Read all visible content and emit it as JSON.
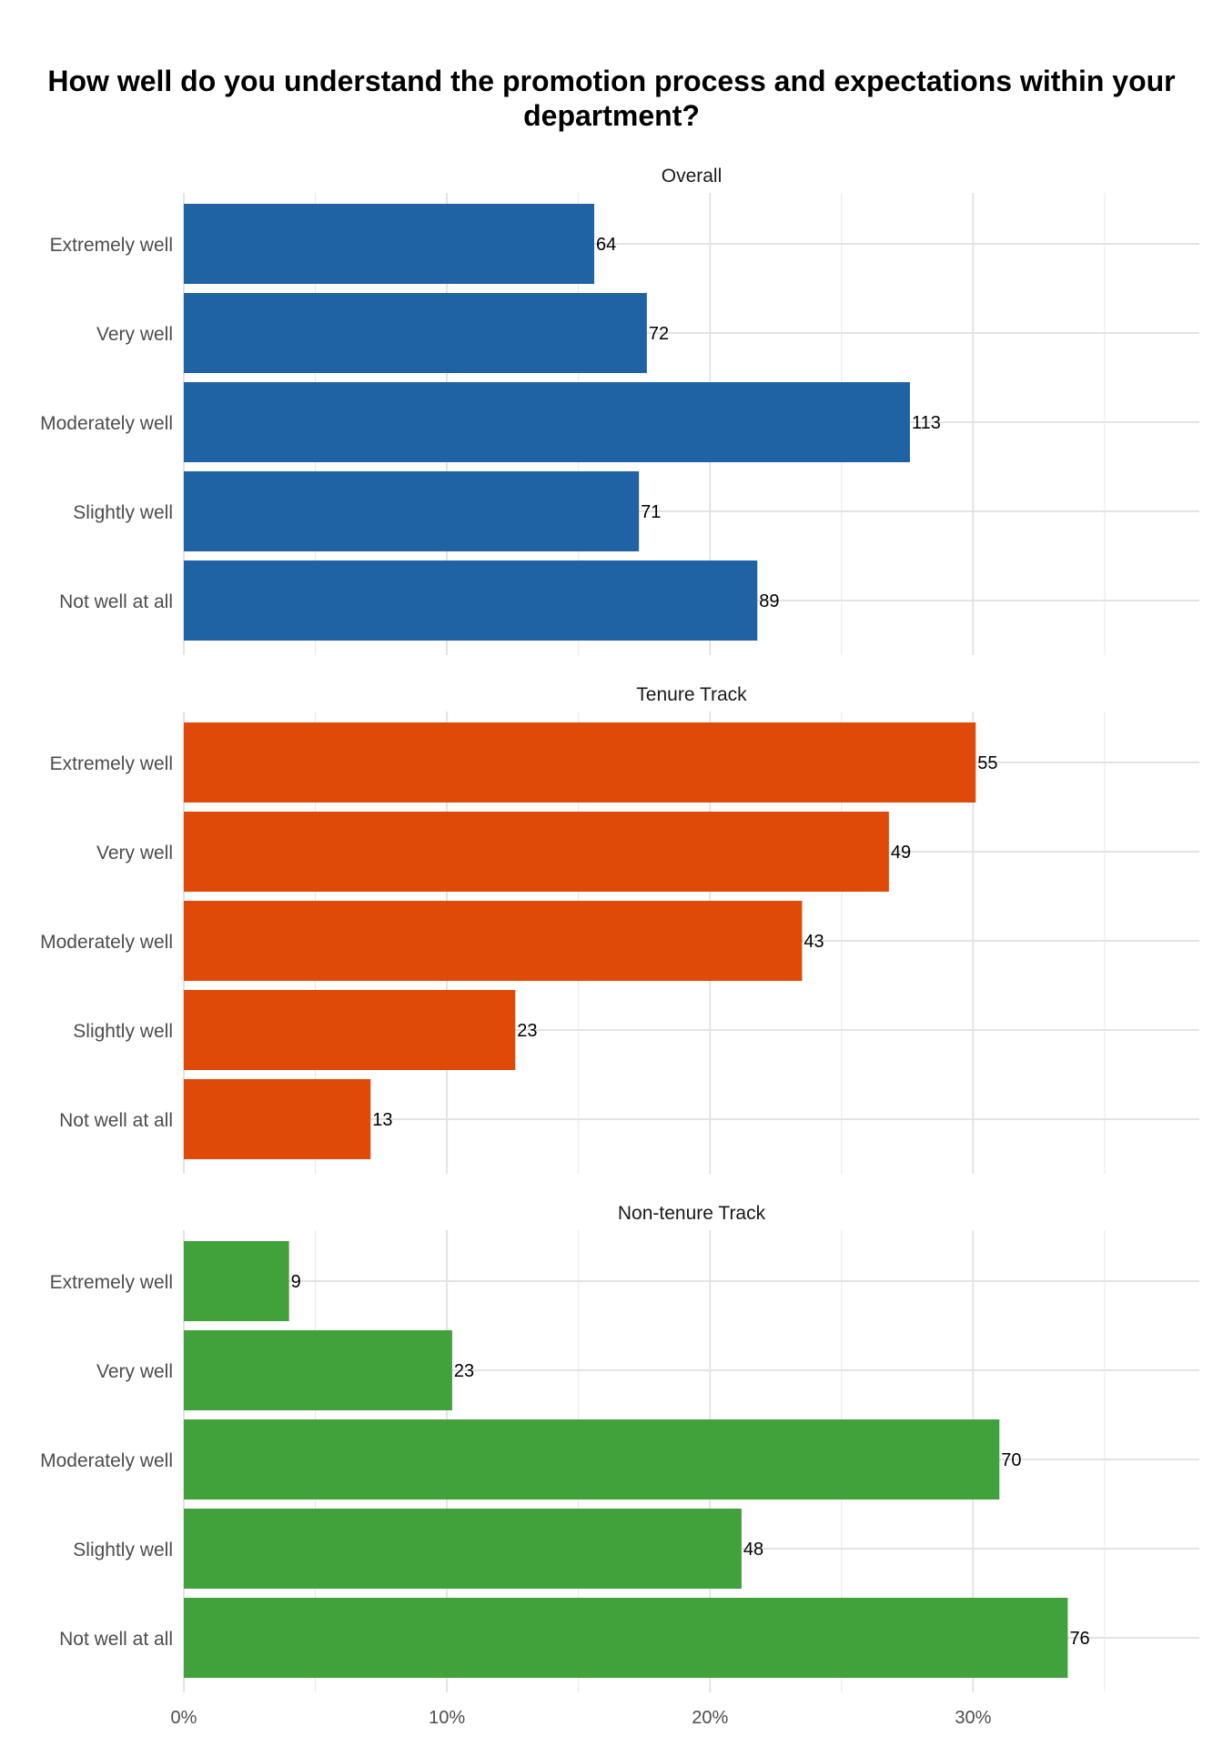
{
  "chart_data": {
    "type": "bar",
    "orientation": "horizontal",
    "title": "How well do you understand the promotion process and expectations within your department?",
    "categories": [
      "Extremely well",
      "Very well",
      "Moderately well",
      "Slightly well",
      "Not well at all"
    ],
    "xlim": [
      0,
      0.386
    ],
    "x_ticks": [
      0,
      0.1,
      0.2,
      0.3
    ],
    "x_tick_labels": [
      "0%",
      "10%",
      "20%",
      "30%"
    ],
    "grid": true,
    "legend": "none",
    "panels": [
      {
        "name": "Overall",
        "color": "#1f63a5",
        "counts": [
          64,
          72,
          113,
          71,
          89
        ],
        "percent": [
          0.156,
          0.176,
          0.276,
          0.173,
          0.218
        ]
      },
      {
        "name": "Tenure Track",
        "color": "#e04a08",
        "counts": [
          55,
          49,
          43,
          23,
          13
        ],
        "percent": [
          0.301,
          0.268,
          0.235,
          0.126,
          0.071
        ]
      },
      {
        "name": "Non-tenure Track",
        "color": "#41a13b",
        "counts": [
          9,
          23,
          70,
          48,
          76
        ],
        "percent": [
          0.04,
          0.102,
          0.31,
          0.212,
          0.336
        ]
      }
    ]
  }
}
